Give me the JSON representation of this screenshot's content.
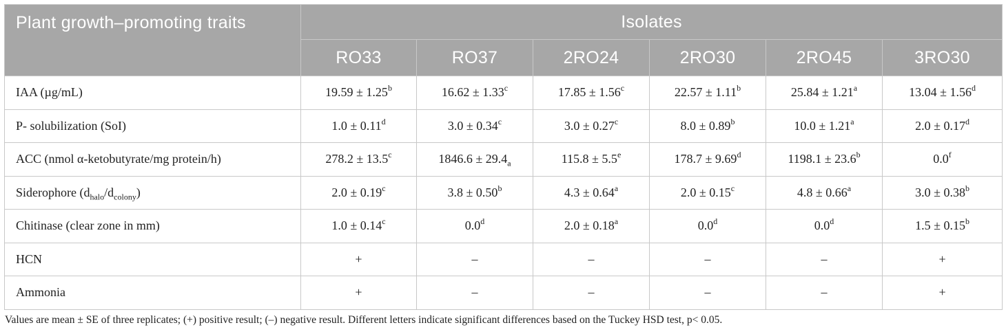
{
  "table": {
    "trait_header": "Plant growth–promoting traits",
    "group_header": "Isolates",
    "columns": [
      "RO33",
      "RO37",
      "2RO24",
      "2RO30",
      "2RO45",
      "3RO30"
    ],
    "rows": [
      {
        "trait": {
          "main": "IAA (µg/mL)"
        },
        "cells": [
          {
            "value": "19.59 ± 1.25",
            "sup": "b"
          },
          {
            "value": "16.62 ± 1.33",
            "sup": "c"
          },
          {
            "value": "17.85 ± 1.56",
            "sup": "c"
          },
          {
            "value": "22.57 ± 1.11",
            "sup": "b"
          },
          {
            "value": "25.84 ± 1.21",
            "sup": "a"
          },
          {
            "value": "13.04 ± 1.56",
            "sup": "d"
          }
        ]
      },
      {
        "trait": {
          "main": "P- solubilization (SoI)"
        },
        "cells": [
          {
            "value": "1.0 ± 0.11",
            "sup": "d"
          },
          {
            "value": "3.0 ± 0.34",
            "sup": "c"
          },
          {
            "value": "3.0 ± 0.27",
            "sup": "c"
          },
          {
            "value": "8.0 ± 0.89",
            "sup": "b"
          },
          {
            "value": "10.0 ± 1.21",
            "sup": "a"
          },
          {
            "value": "2.0 ± 0.17",
            "sup": "d"
          }
        ]
      },
      {
        "trait": {
          "main": "ACC (nmol α-ketobutyrate/mg protein/h)"
        },
        "cells": [
          {
            "value": "278.2 ± 13.5",
            "sup": "c"
          },
          {
            "value": "1846.6 ± 29.4",
            "sub": "a"
          },
          {
            "value": "115.8 ± 5.5",
            "sup": "e"
          },
          {
            "value": "178.7 ± 9.69",
            "sup": "d"
          },
          {
            "value": "1198.1 ± 23.6",
            "sup": "b"
          },
          {
            "value": "0.0",
            "sup": "f"
          }
        ]
      },
      {
        "trait": {
          "main": "Siderophore (d",
          "sub1": "halo",
          "mid": "/d",
          "sub2": "colony",
          "end": ")"
        },
        "cells": [
          {
            "value": "2.0 ± 0.19",
            "sup": "c"
          },
          {
            "value": "3.8 ± 0.50",
            "sup": "b"
          },
          {
            "value": "4.3 ± 0.64",
            "sup": "a"
          },
          {
            "value": "2.0 ± 0.15",
            "sup": "c"
          },
          {
            "value": "4.8 ± 0.66",
            "sup": "a"
          },
          {
            "value": "3.0 ± 0.38",
            "sup": "b"
          }
        ]
      },
      {
        "trait": {
          "main": "Chitinase (clear zone in mm)"
        },
        "cells": [
          {
            "value": "1.0 ± 0.14",
            "sup": "c"
          },
          {
            "value": "0.0",
            "sup": "d"
          },
          {
            "value": "2.0 ± 0.18",
            "sup": "a"
          },
          {
            "value": "0.0",
            "sup": "d"
          },
          {
            "value": "0.0",
            "sup": "d"
          },
          {
            "value": "1.5 ± 0.15",
            "sup": "b"
          }
        ]
      },
      {
        "trait": {
          "main": "HCN"
        },
        "cells": [
          {
            "value": "+"
          },
          {
            "value": "–"
          },
          {
            "value": "–"
          },
          {
            "value": "–"
          },
          {
            "value": "–"
          },
          {
            "value": "+"
          }
        ]
      },
      {
        "trait": {
          "main": "Ammonia"
        },
        "cells": [
          {
            "value": "+"
          },
          {
            "value": "–"
          },
          {
            "value": "–"
          },
          {
            "value": "–"
          },
          {
            "value": "–"
          },
          {
            "value": "+"
          }
        ]
      }
    ]
  },
  "footnote": "Values are mean ± SE of three replicates; (+) positive result; (–) negative result. Different letters indicate significant differences based on the Tuckey HSD test, p< 0.05."
}
